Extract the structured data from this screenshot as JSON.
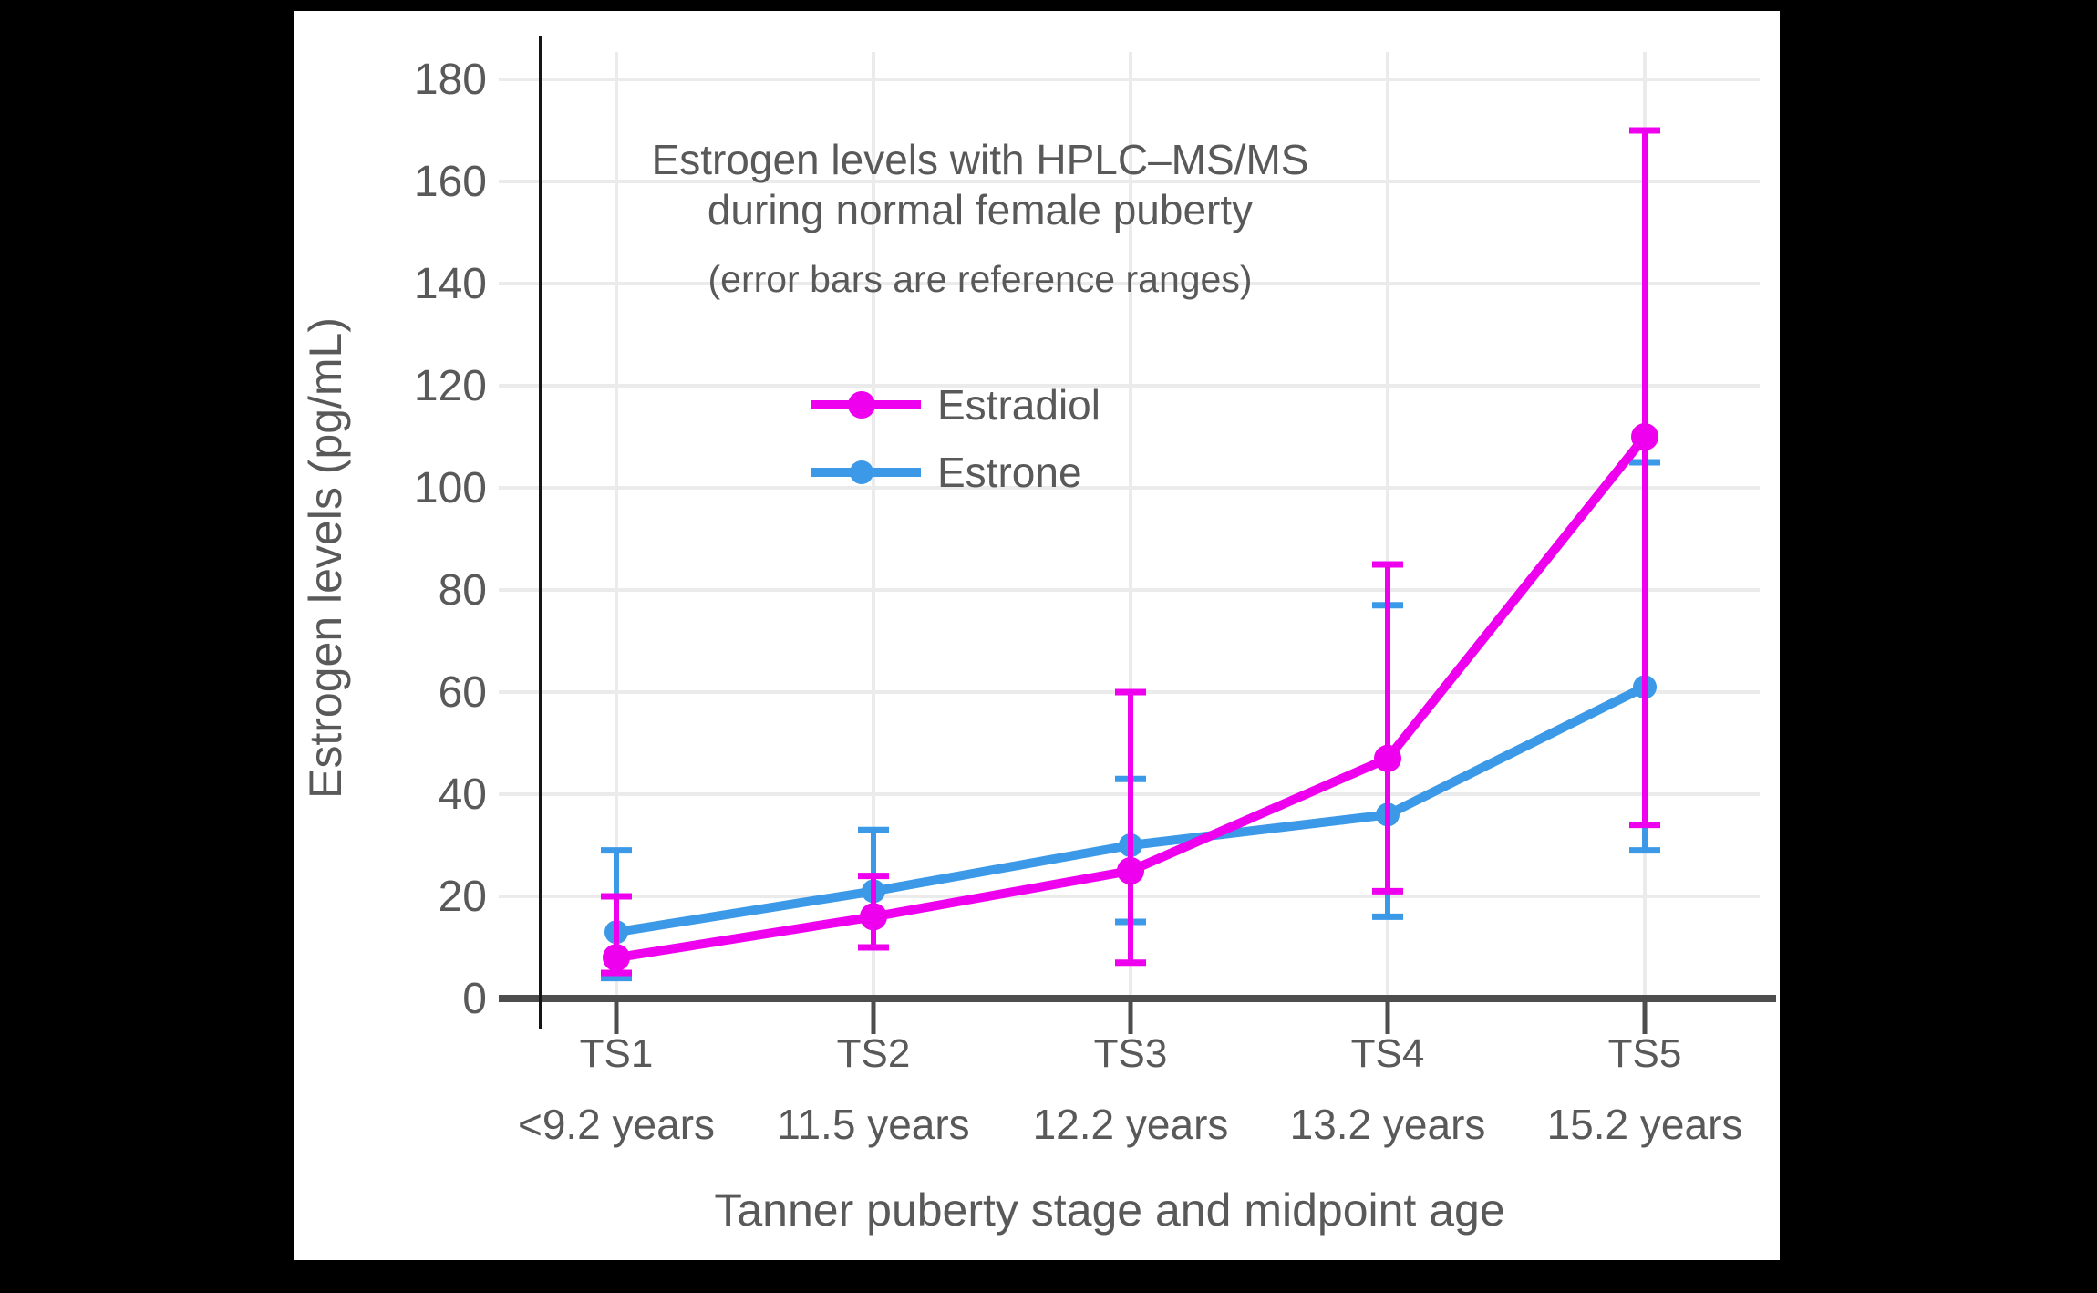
{
  "chart_data": {
    "type": "line",
    "title": "Estrogen levels with HPLC–MS/MS",
    "title_line2": "during normal female puberty",
    "subtitle": "(error bars are reference ranges)",
    "xlabel": "Tanner puberty stage and midpoint age",
    "ylabel": "Estrogen levels (pg/mL)",
    "ylim": [
      0,
      180
    ],
    "ytick_step": 20,
    "grid": true,
    "legend_position": "upper-left-inside",
    "error_bar_meaning": "reference ranges",
    "categories": [
      "TS1",
      "TS2",
      "TS3",
      "TS4",
      "TS5"
    ],
    "category_sublabels": [
      "<9.2 years",
      "11.5 years",
      "12.2 years",
      "13.2 years",
      "15.2 years"
    ],
    "series": [
      {
        "name": "Estradiol",
        "color": "#EE00EE",
        "values": [
          8,
          16,
          25,
          47,
          110
        ],
        "range_low": [
          5,
          10,
          7,
          21,
          34
        ],
        "range_high": [
          20,
          24,
          60,
          85,
          170
        ],
        "marker_radius": 15
      },
      {
        "name": "Estrone",
        "color": "#3B99E8",
        "values": [
          13,
          21,
          30,
          36,
          61
        ],
        "range_low": [
          4,
          10,
          15,
          16,
          29
        ],
        "range_high": [
          29,
          33,
          43,
          77,
          105
        ],
        "marker_radius": 13
      }
    ]
  },
  "colors": {
    "background": "#000000",
    "plot_background": "#ffffff",
    "grid": "#EBEBEB",
    "x_axis": "#4D4D4D",
    "y_axis": "#141414",
    "text": "#595959"
  }
}
